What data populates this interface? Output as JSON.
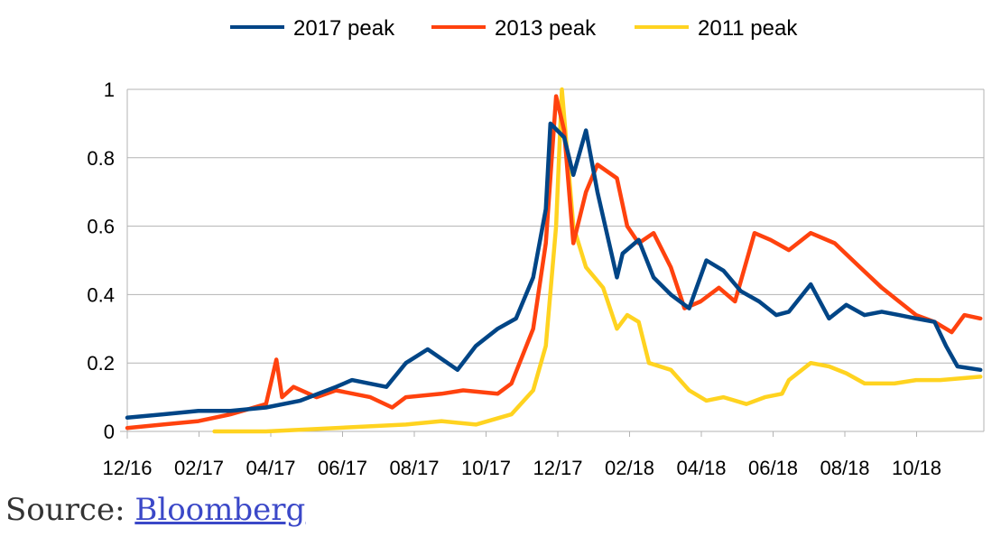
{
  "chart_data": {
    "type": "line",
    "title": "",
    "xlabel": "",
    "ylabel": "",
    "ylim": [
      0,
      1
    ],
    "yticks": [
      "0",
      "0.2",
      "0.4",
      "0.6",
      "0.8",
      "1"
    ],
    "xticks": [
      "12/16",
      "02/17",
      "04/17",
      "06/17",
      "08/17",
      "10/17",
      "12/17",
      "02/18",
      "04/18",
      "06/18",
      "08/18",
      "10/18"
    ],
    "grid": true,
    "legend_position": "top",
    "series": [
      {
        "name": "2017 peak",
        "color": "#004586",
        "x": [
          "2016-12-01",
          "2017-01-01",
          "2017-02-01",
          "2017-03-01",
          "2017-04-01",
          "2017-05-01",
          "2017-06-01",
          "2017-06-15",
          "2017-07-15",
          "2017-08-01",
          "2017-08-20",
          "2017-09-15",
          "2017-10-01",
          "2017-10-20",
          "2017-11-05",
          "2017-11-20",
          "2017-12-01",
          "2017-12-05",
          "2017-12-17",
          "2017-12-25",
          "2018-01-05",
          "2018-01-15",
          "2018-02-01",
          "2018-02-06",
          "2018-02-20",
          "2018-03-05",
          "2018-03-20",
          "2018-04-05",
          "2018-04-20",
          "2018-05-05",
          "2018-05-20",
          "2018-06-05",
          "2018-06-20",
          "2018-07-01",
          "2018-07-20",
          "2018-08-05",
          "2018-08-20",
          "2018-09-05",
          "2018-09-20",
          "2018-10-05",
          "2018-10-20",
          "2018-11-05",
          "2018-11-15",
          "2018-11-25",
          "2018-12-15"
        ],
        "values": [
          0.04,
          0.05,
          0.06,
          0.06,
          0.07,
          0.09,
          0.13,
          0.15,
          0.13,
          0.2,
          0.24,
          0.18,
          0.25,
          0.3,
          0.33,
          0.45,
          0.65,
          0.9,
          0.86,
          0.75,
          0.88,
          0.7,
          0.45,
          0.52,
          0.56,
          0.45,
          0.4,
          0.36,
          0.5,
          0.47,
          0.41,
          0.38,
          0.34,
          0.35,
          0.43,
          0.33,
          0.37,
          0.34,
          0.35,
          0.34,
          0.33,
          0.32,
          0.25,
          0.19,
          0.18
        ]
      },
      {
        "name": "2013 peak",
        "color": "#ff420e",
        "x": [
          "2016-12-01",
          "2017-01-01",
          "2017-02-01",
          "2017-03-01",
          "2017-04-01",
          "2017-04-10",
          "2017-04-15",
          "2017-04-25",
          "2017-05-15",
          "2017-06-01",
          "2017-07-01",
          "2017-07-20",
          "2017-08-01",
          "2017-09-01",
          "2017-09-20",
          "2017-10-20",
          "2017-11-01",
          "2017-11-20",
          "2017-12-01",
          "2017-12-10",
          "2017-12-17",
          "2017-12-25",
          "2018-01-05",
          "2018-01-15",
          "2018-02-01",
          "2018-02-10",
          "2018-02-20",
          "2018-03-05",
          "2018-03-20",
          "2018-04-01",
          "2018-04-15",
          "2018-05-01",
          "2018-05-15",
          "2018-06-01",
          "2018-06-15",
          "2018-07-01",
          "2018-07-20",
          "2018-08-10",
          "2018-09-01",
          "2018-09-20",
          "2018-10-05",
          "2018-10-20",
          "2018-11-05",
          "2018-11-20",
          "2018-12-01",
          "2018-12-15"
        ],
        "values": [
          0.01,
          0.02,
          0.03,
          0.05,
          0.08,
          0.21,
          0.1,
          0.13,
          0.1,
          0.12,
          0.1,
          0.07,
          0.1,
          0.11,
          0.12,
          0.11,
          0.14,
          0.3,
          0.55,
          0.98,
          0.88,
          0.55,
          0.7,
          0.78,
          0.74,
          0.6,
          0.55,
          0.58,
          0.48,
          0.36,
          0.38,
          0.42,
          0.38,
          0.58,
          0.56,
          0.53,
          0.58,
          0.55,
          0.48,
          0.42,
          0.38,
          0.34,
          0.32,
          0.29,
          0.34,
          0.33
        ]
      },
      {
        "name": "2011 peak",
        "color": "#ffd320",
        "x": [
          "2017-02-15",
          "2017-04-01",
          "2017-06-01",
          "2017-08-01",
          "2017-09-01",
          "2017-10-01",
          "2017-11-01",
          "2017-11-20",
          "2017-12-01",
          "2017-12-10",
          "2017-12-15",
          "2017-12-25",
          "2018-01-05",
          "2018-01-20",
          "2018-02-01",
          "2018-02-10",
          "2018-02-20",
          "2018-03-01",
          "2018-03-20",
          "2018-04-05",
          "2018-04-20",
          "2018-05-05",
          "2018-05-25",
          "2018-06-10",
          "2018-06-25",
          "2018-07-01",
          "2018-07-20",
          "2018-08-05",
          "2018-08-20",
          "2018-09-05",
          "2018-10-01",
          "2018-10-20",
          "2018-11-10",
          "2018-12-15"
        ],
        "values": [
          0.0,
          0.0,
          0.01,
          0.02,
          0.03,
          0.02,
          0.05,
          0.12,
          0.25,
          0.6,
          1.0,
          0.6,
          0.48,
          0.42,
          0.3,
          0.34,
          0.32,
          0.2,
          0.18,
          0.12,
          0.09,
          0.1,
          0.08,
          0.1,
          0.11,
          0.15,
          0.2,
          0.19,
          0.17,
          0.14,
          0.14,
          0.15,
          0.15,
          0.16
        ]
      }
    ]
  },
  "source": {
    "prefix": "Source: ",
    "link_text": "Bloomberg"
  }
}
